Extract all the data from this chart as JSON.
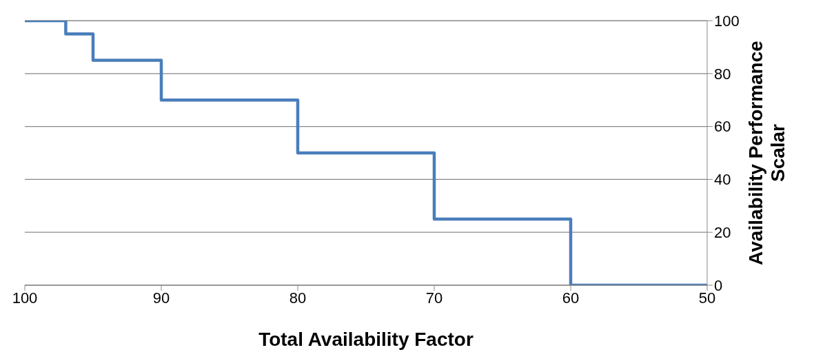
{
  "chart_data": {
    "type": "step",
    "xlabel": "Total Availability Factor",
    "ylabel": "Availability Performance Scalar",
    "x": [
      100,
      97,
      95,
      90,
      80,
      70,
      60,
      50
    ],
    "series": [
      {
        "color": "#4a7ebb",
        "values": [
          100,
          95,
          85,
          70,
          50,
          25,
          0,
          0
        ]
      }
    ],
    "xlim": [
      100,
      50
    ],
    "xticks": [
      100,
      90,
      80,
      70,
      60,
      50
    ],
    "ylim": [
      0,
      100
    ],
    "yticks": [
      0,
      20,
      40,
      60,
      80,
      100
    ],
    "grid": "y",
    "marker": "none",
    "line_style": "solid"
  }
}
